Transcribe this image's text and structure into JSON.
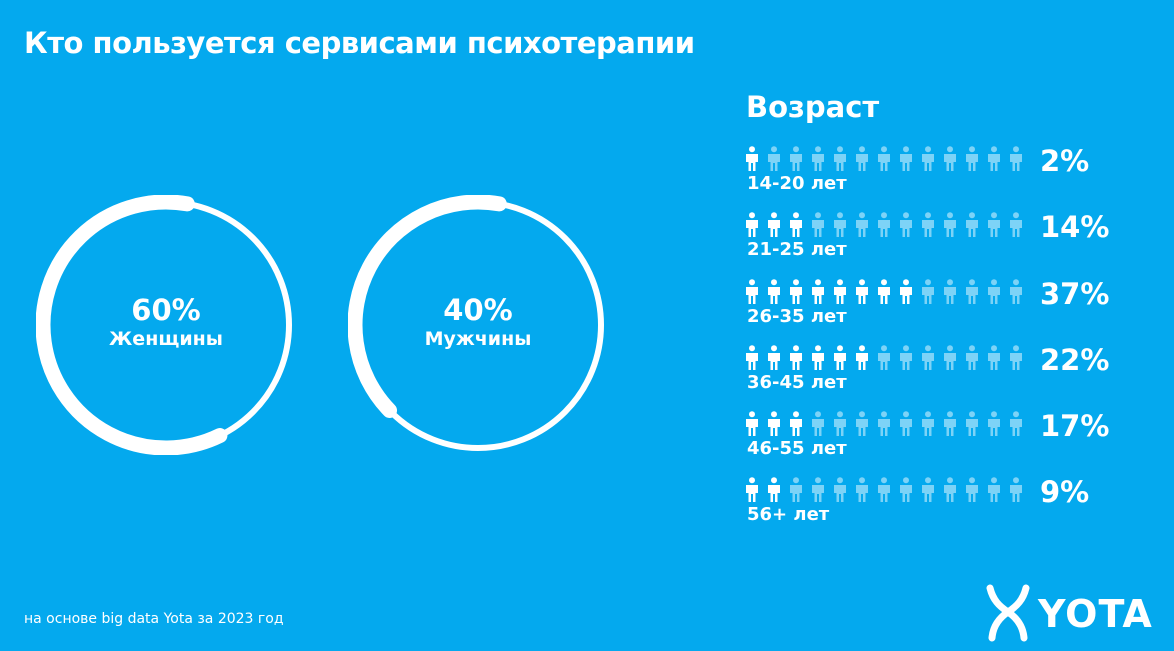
{
  "title": "Кто пользуется сервисами психотерапии",
  "footnote": "на основе big data Yota за 2023 год",
  "logo_text": "YOTA",
  "colors": {
    "background": "#04a9ee",
    "active": "#ffffff",
    "inactive": "#7dd3f7"
  },
  "gender": [
    {
      "percent": "60%",
      "label": "Женщины",
      "value": 60
    },
    {
      "percent": "40%",
      "label": "Мужчины",
      "value": 40
    }
  ],
  "age": {
    "heading": "Возраст",
    "icons_per_row": 13,
    "rows": [
      {
        "label": "14-20 лет",
        "percent": "2%",
        "filled": 1
      },
      {
        "label": "21-25 лет",
        "percent": "14%",
        "filled": 3
      },
      {
        "label": "26-35 лет",
        "percent": "37%",
        "filled": 8
      },
      {
        "label": "36-45 лет",
        "percent": "22%",
        "filled": 6
      },
      {
        "label": "46-55 лет",
        "percent": "17%",
        "filled": 3
      },
      {
        "label": "56+ лет",
        "percent": "9%",
        "filled": 2
      }
    ]
  },
  "chart_data": [
    {
      "type": "pie",
      "categories": [
        "Женщины",
        "Мужчины"
      ],
      "values": [
        60,
        40
      ],
      "title": "Кто пользуется сервисами психотерапии"
    },
    {
      "type": "bar",
      "title": "Возраст",
      "categories": [
        "14-20 лет",
        "21-25 лет",
        "26-35 лет",
        "36-45 лет",
        "46-55 лет",
        "56+ лет"
      ],
      "values": [
        2,
        14,
        37,
        22,
        17,
        9
      ]
    }
  ]
}
